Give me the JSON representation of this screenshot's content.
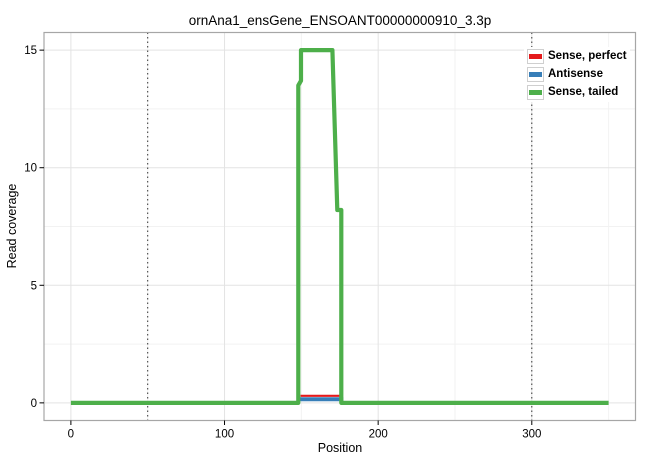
{
  "chart_data": {
    "type": "line",
    "title": "ornAna1_ensGene_ENSOANT00000000910_3.3p",
    "xlabel": "Position",
    "ylabel": "Read coverage",
    "xlim": [
      -17.5,
      367.5
    ],
    "ylim": [
      -0.75,
      15.75
    ],
    "x_ticks": [
      0,
      100,
      200,
      300
    ],
    "y_ticks": [
      0,
      5,
      10,
      15
    ],
    "x_tick_labels": [
      "0",
      "100",
      "200",
      "300"
    ],
    "y_tick_labels": [
      "0",
      "5",
      "10",
      "15"
    ],
    "x_minor_ticks": [
      50,
      150,
      250,
      350
    ],
    "y_minor_ticks": [
      2.5,
      7.5,
      12.5
    ],
    "grid": "major and minor, light gray on white, panel border",
    "dotted_rules_x": [
      50,
      300
    ],
    "legend_position": "top-right inside panel",
    "series": [
      {
        "name": "Sense, perfect",
        "color": "#E41A1C",
        "width": 2.2,
        "draw_order": 2,
        "points": [
          [
            149.5,
            0.3
          ],
          [
            176.8,
            0.3
          ]
        ]
      },
      {
        "name": "Antisense",
        "color": "#377EB8",
        "width": 4,
        "draw_order": 1,
        "points": [
          [
            149,
            0.15
          ],
          [
            177.3,
            0.15
          ]
        ]
      },
      {
        "name": "Sense, tailed",
        "color": "#4DAF4A",
        "width": 4.2,
        "draw_order": 3,
        "points": [
          [
            0,
            0
          ],
          [
            148,
            0
          ],
          [
            148,
            13.5
          ],
          [
            149.8,
            13.7
          ],
          [
            149.8,
            15
          ],
          [
            170.2,
            15
          ],
          [
            173.4,
            8.2
          ],
          [
            176,
            8.2
          ],
          [
            176,
            0
          ],
          [
            350,
            0
          ]
        ]
      }
    ]
  },
  "legend": {
    "items": [
      {
        "label": "Sense, perfect",
        "color": "#E41A1C"
      },
      {
        "label": "Antisense",
        "color": "#377EB8"
      },
      {
        "label": "Sense, tailed",
        "color": "#4DAF4A"
      }
    ]
  },
  "colors": {
    "background": "#FFFFFF",
    "grid_major": "#E3E3E3",
    "grid_minor": "#F2F2F2",
    "panel_border": "#A6A6A6",
    "dotted_rule": "#333333",
    "tick": "#000000",
    "text": "#000000"
  }
}
